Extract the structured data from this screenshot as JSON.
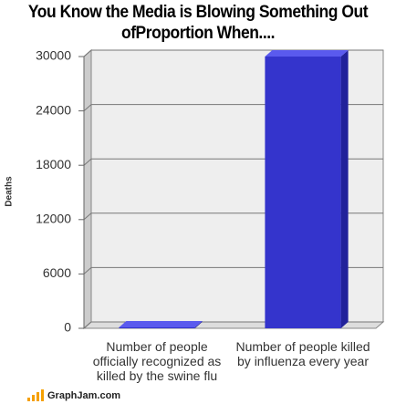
{
  "chart_data": {
    "type": "bar3d",
    "title": "You Know the Media is Blowing Something Out ofProportion When....",
    "y_label": "Deaths",
    "categories": [
      "Number of people officially recognized as killed by the swine flu",
      "Number of people killed by influenza every year"
    ],
    "values": [
      100,
      30000
    ],
    "color": "#3434cc",
    "ylim": [
      0,
      30000
    ],
    "yticks": [
      0,
      6000,
      12000,
      18000,
      24000,
      30000
    ],
    "grid": true,
    "source": "GraphJam.com"
  }
}
